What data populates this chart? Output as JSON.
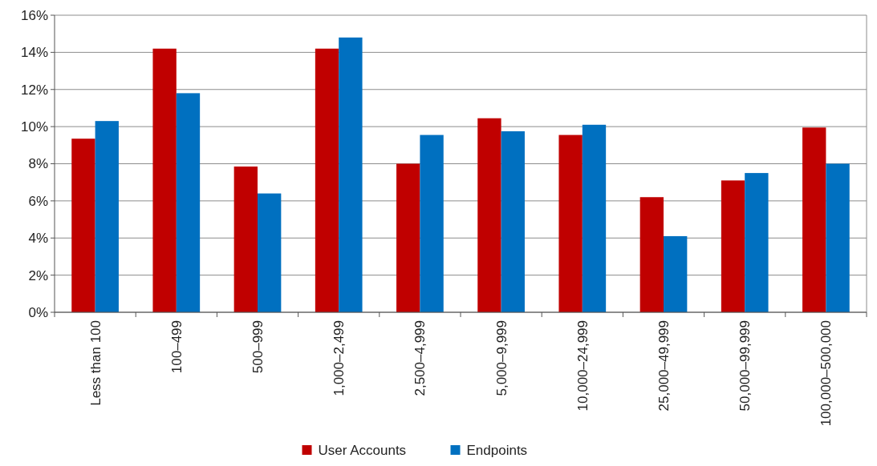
{
  "chart_data": {
    "type": "bar",
    "categories": [
      "Less than 100",
      "100–499",
      "500–999",
      "1,000–2,499",
      "2,500–4,999",
      "5,000–9,999",
      "10,000–24,999",
      "25,000–49,999",
      "50,000–99,999",
      "100,000–500,000"
    ],
    "series": [
      {
        "name": "User Accounts",
        "color": "#c00000",
        "values": [
          9.35,
          14.2,
          7.85,
          14.2,
          8.0,
          10.45,
          9.55,
          6.2,
          7.1,
          9.95
        ]
      },
      {
        "name": "Endpoints",
        "color": "#0070c0",
        "values": [
          10.3,
          11.8,
          6.4,
          14.8,
          9.55,
          9.75,
          10.1,
          4.1,
          7.5,
          8.0
        ]
      }
    ],
    "ylim": [
      0,
      16
    ],
    "yticks": [
      {
        "value": 0,
        "label": "0%"
      },
      {
        "value": 2,
        "label": "2%"
      },
      {
        "value": 4,
        "label": "4%"
      },
      {
        "value": 6,
        "label": "6%"
      },
      {
        "value": 8,
        "label": "8%"
      },
      {
        "value": 10,
        "label": "10%"
      },
      {
        "value": 12,
        "label": "12%"
      },
      {
        "value": 14,
        "label": "14%"
      },
      {
        "value": 16,
        "label": "16%"
      }
    ],
    "grid": "y",
    "legend": "bottom"
  }
}
